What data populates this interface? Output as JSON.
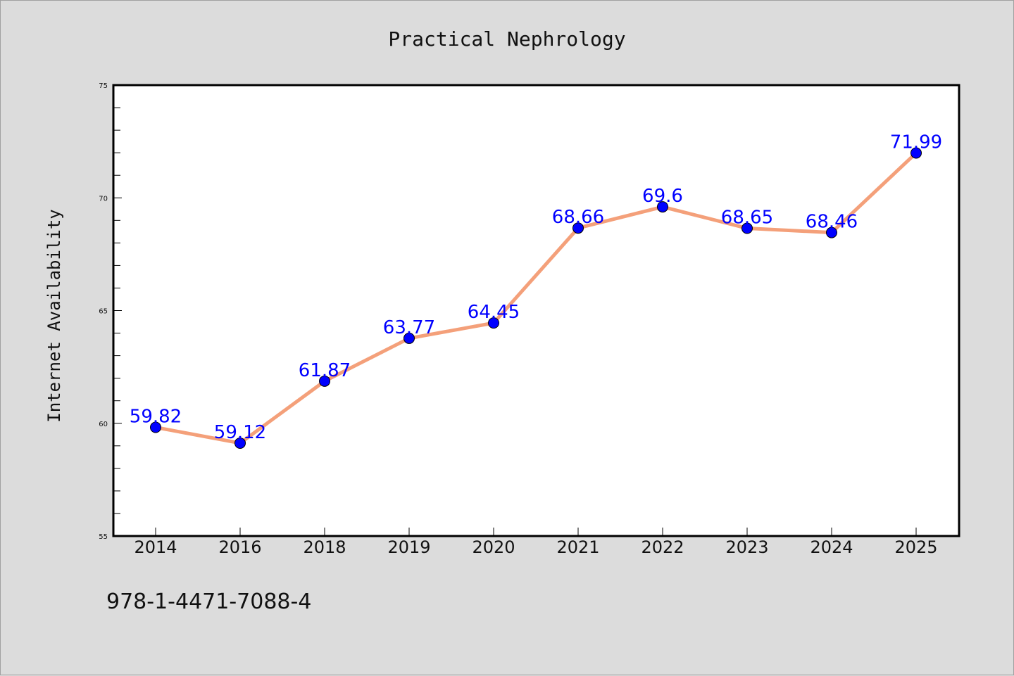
{
  "chart_data": {
    "type": "line",
    "title": "Practical Nephrology",
    "ylabel": "Internet Availability",
    "xlabel": "",
    "categories": [
      "2014",
      "2016",
      "2018",
      "2019",
      "2020",
      "2021",
      "2022",
      "2023",
      "2024",
      "2025"
    ],
    "series": [
      {
        "values": [
          59.82,
          59.12,
          61.87,
          63.77,
          64.45,
          68.66,
          69.6,
          68.65,
          68.46,
          71.99
        ],
        "data_labels": [
          "59.82",
          "59.12",
          "61.87",
          "63.77",
          "64.45",
          "68.66",
          "69.6",
          "68.65",
          "68.46",
          "71.99"
        ],
        "line_color": "#f4a07a",
        "marker_color": "#0000ff"
      }
    ],
    "ylim": [
      55,
      75
    ],
    "yticks": [
      "55",
      "60",
      "65",
      "70",
      "75"
    ],
    "grid": false,
    "legend": "none"
  },
  "footer": {
    "isbn": "978-1-4471-7088-4"
  },
  "colors": {
    "background": "#dcdcdc",
    "plot_background": "#ffffff",
    "line": "#f4a07a",
    "marker": "#0000ff",
    "data_label": "#0000ff"
  }
}
